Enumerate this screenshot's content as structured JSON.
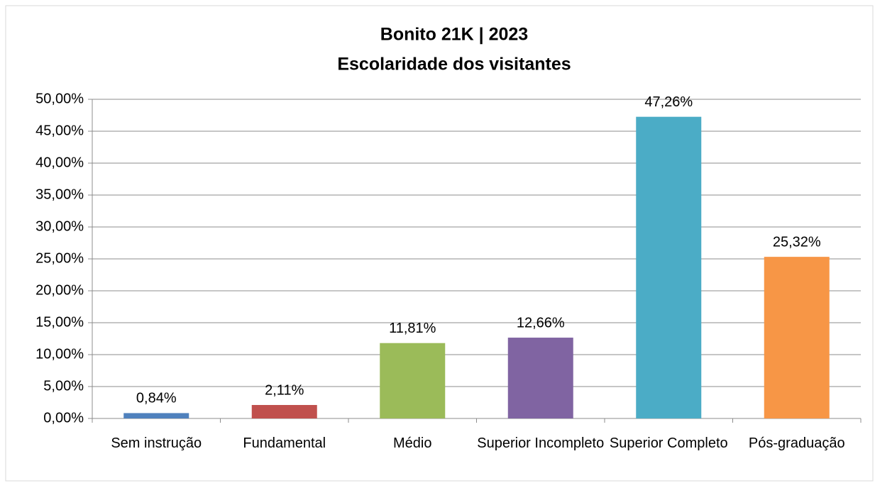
{
  "chart_data": {
    "type": "bar",
    "title": "Bonito 21K | 2023",
    "subtitle": "Escolaridade dos visitantes",
    "categories": [
      "Sem instrução",
      "Fundamental",
      "Médio",
      "Superior Incompleto",
      "Superior Completo",
      "Pós-graduação"
    ],
    "values": [
      0.84,
      2.11,
      11.81,
      12.66,
      47.26,
      25.32
    ],
    "value_labels": [
      "0,84%",
      "2,11%",
      "11,81%",
      "12,66%",
      "47,26%",
      "25,32%"
    ],
    "colors": [
      "#4f81bd",
      "#c0504d",
      "#9bbb59",
      "#8064a2",
      "#4bacc6",
      "#f79646"
    ],
    "ylim": [
      0,
      50
    ],
    "yticks": [
      {
        "value": 0,
        "label": "0,00%"
      },
      {
        "value": 5,
        "label": "5,00%"
      },
      {
        "value": 10,
        "label": "10,00%"
      },
      {
        "value": 15,
        "label": "15,00%"
      },
      {
        "value": 20,
        "label": "20,00%"
      },
      {
        "value": 25,
        "label": "25,00%"
      },
      {
        "value": 30,
        "label": "30,00%"
      },
      {
        "value": 35,
        "label": "35,00%"
      },
      {
        "value": 40,
        "label": "40,00%"
      },
      {
        "value": 45,
        "label": "45,00%"
      },
      {
        "value": 50,
        "label": "50,00%"
      }
    ],
    "grid": true
  }
}
